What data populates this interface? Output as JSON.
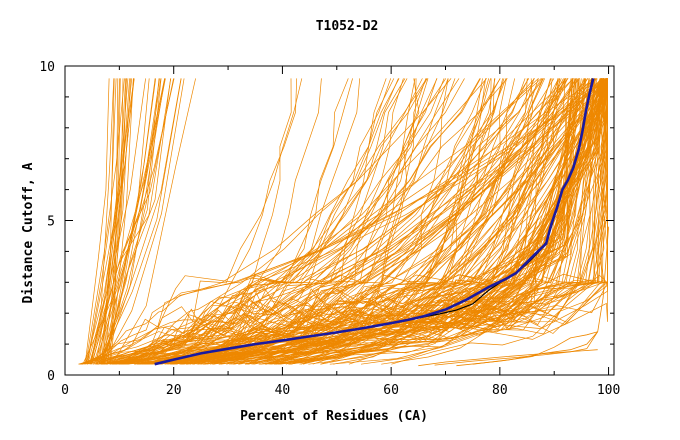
{
  "chart_data": {
    "type": "line",
    "title": "T1052-D2",
    "xlabel": "Percent of Residues (CA)",
    "ylabel": "Distance Cutoff, A",
    "xlim": [
      0,
      101
    ],
    "ylim": [
      0,
      10
    ],
    "x_ticks": [
      0,
      20,
      40,
      60,
      80,
      100
    ],
    "y_ticks": [
      0,
      5,
      10
    ],
    "grid": false,
    "colors": {
      "models": "#ee8800",
      "highlight": "#1a1aa0",
      "reference": "#000000",
      "axes": "#000000"
    },
    "y_max_data": 9.6,
    "model_family_knees": [
      [
        17,
        26
      ],
      [
        20,
        20
      ],
      [
        23,
        30
      ],
      [
        26,
        18
      ],
      [
        29,
        26
      ],
      [
        31,
        22
      ],
      [
        34,
        28
      ],
      [
        37,
        20
      ],
      [
        40,
        24
      ],
      [
        43,
        30
      ],
      [
        45,
        18
      ],
      [
        48,
        22
      ],
      [
        50,
        26
      ],
      [
        52,
        20
      ],
      [
        54,
        24
      ],
      [
        56,
        28
      ],
      [
        58,
        21
      ],
      [
        60,
        25
      ],
      [
        62,
        19
      ],
      [
        64,
        23
      ],
      [
        66,
        27
      ],
      [
        68,
        20
      ],
      [
        70,
        24
      ],
      [
        72,
        18
      ],
      [
        74,
        22
      ],
      [
        76,
        26
      ],
      [
        78,
        20
      ],
      [
        80,
        24
      ],
      [
        82,
        18
      ],
      [
        84,
        22
      ],
      [
        86,
        26
      ],
      [
        88,
        20
      ]
    ],
    "series": [
      {
        "style": "highlight",
        "x": [
          16.5,
          20,
          25,
          30,
          35,
          40,
          45,
          50,
          55,
          60,
          63,
          66,
          70,
          74,
          78,
          81,
          83,
          85,
          87,
          88.5,
          89.5,
          90.5,
          91.5,
          92.5,
          93.5,
          94.5,
          95.2,
          95.8,
          96.5,
          97.2
        ],
        "y": [
          0.35,
          0.5,
          0.7,
          0.85,
          1.0,
          1.12,
          1.25,
          1.38,
          1.52,
          1.68,
          1.78,
          1.9,
          2.12,
          2.45,
          2.85,
          3.1,
          3.3,
          3.65,
          4.0,
          4.25,
          4.9,
          5.4,
          6.0,
          6.3,
          6.7,
          7.3,
          7.9,
          8.5,
          9.1,
          9.6
        ]
      },
      {
        "style": "reference",
        "x": [
          16.5,
          20,
          25,
          30,
          35,
          40,
          45,
          50,
          55,
          60,
          63,
          66,
          69,
          72,
          75,
          78,
          81,
          83,
          85,
          87,
          88.5,
          89.5,
          90.5,
          91.5,
          92.5,
          93.5,
          94.5,
          95.2,
          95.8,
          96.5,
          97.0
        ],
        "y": [
          0.35,
          0.5,
          0.7,
          0.85,
          1.0,
          1.12,
          1.25,
          1.38,
          1.52,
          1.68,
          1.78,
          1.88,
          1.98,
          2.1,
          2.3,
          2.75,
          3.1,
          3.3,
          3.6,
          3.95,
          4.3,
          4.8,
          5.4,
          6.0,
          6.3,
          6.7,
          7.3,
          7.9,
          8.5,
          9.1,
          9.6
        ]
      },
      {
        "style": "model",
        "name_hidden": true,
        "x": [
          65,
          70,
          75,
          80,
          85,
          90,
          95,
          98
        ],
        "y": [
          0.3,
          0.42,
          0.5,
          0.58,
          0.65,
          0.72,
          0.78,
          0.82
        ]
      },
      {
        "style": "model",
        "x": [
          68,
          75,
          82,
          88,
          93,
          96,
          98
        ],
        "y": [
          0.32,
          0.45,
          0.55,
          0.65,
          0.75,
          0.85,
          1.4
        ]
      },
      {
        "style": "model",
        "x": [
          72,
          80,
          86,
          90,
          93,
          96,
          98
        ],
        "y": [
          0.3,
          0.45,
          0.6,
          0.9,
          1.2,
          1.3,
          1.4
        ]
      },
      {
        "style": "model",
        "x": [
          75,
          82,
          88,
          93,
          96,
          98,
          99,
          100
        ],
        "y": [
          0.35,
          0.5,
          0.7,
          0.82,
          1.0,
          1.4,
          2.5,
          4.8
        ]
      }
    ]
  }
}
